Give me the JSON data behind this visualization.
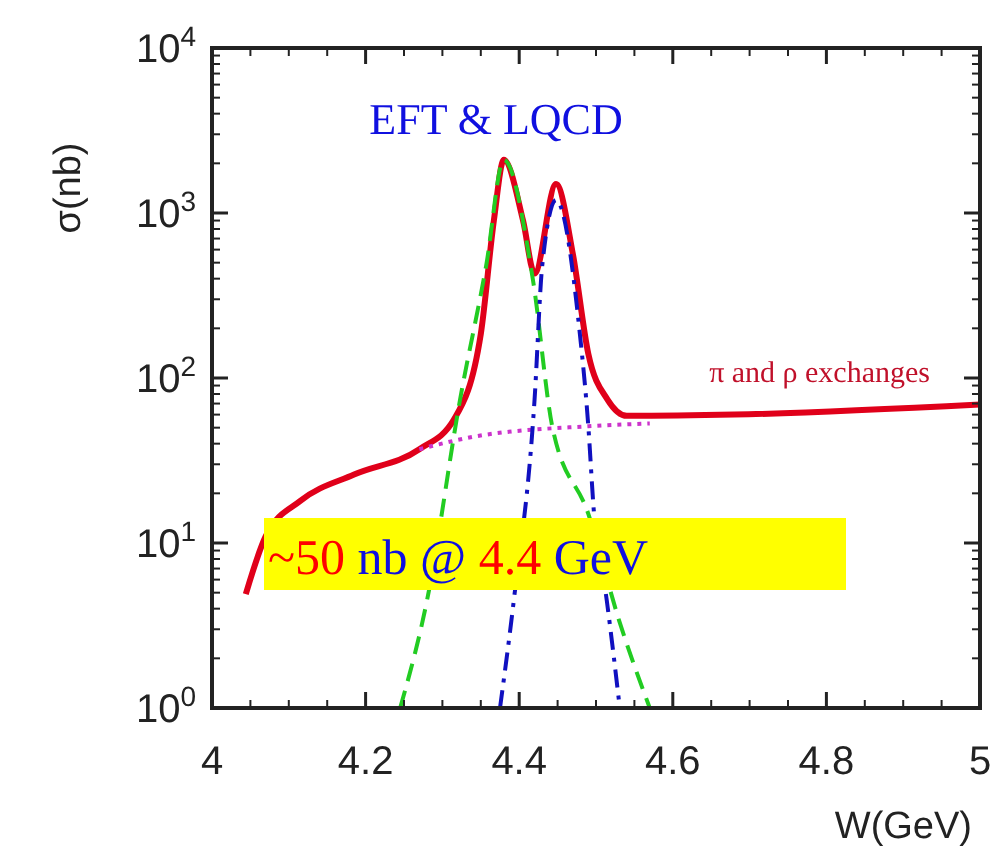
{
  "chart_data": {
    "type": "line",
    "xlabel": "W(GeV)",
    "ylabel": "σ(nb)",
    "log": "y",
    "grid": false,
    "xlim": [
      4,
      5
    ],
    "xticks": [
      4,
      4.2,
      4.4,
      4.6,
      4.8,
      5
    ],
    "ylim": [
      1,
      10000
    ],
    "yticks": [
      {
        "value": 1,
        "label": "10$^{0}$"
      },
      {
        "value": 10,
        "label": "10$^{1}$"
      },
      {
        "value": 100,
        "label": "10$^{2}$"
      },
      {
        "value": 1000,
        "label": "10$^{3}$"
      },
      {
        "value": 10000,
        "label": "10$^{4}$"
      }
    ],
    "series": [
      {
        "color": "#e0001a",
        "line_style": "solid",
        "x": [
          4.044,
          4.07,
          4.115,
          4.185,
          4.27,
          4.315,
          4.35,
          4.367,
          4.38,
          4.405,
          4.42,
          4.448,
          4.47,
          4.49,
          4.515,
          4.54,
          4.68,
          5
        ],
        "values": [
          4.9,
          11,
          18,
          26,
          37,
          56,
          185,
          900,
          2100,
          900,
          430,
          1500,
          560,
          140,
          74,
          59,
          60,
          69
        ]
      },
      {
        "color": "#cc33cc",
        "line_style": "dotted",
        "x": [
          4.27,
          4.34,
          4.49,
          4.57
        ],
        "values": [
          37,
          44,
          51,
          53
        ]
      },
      {
        "color": "#22cc22",
        "line_style": "dashed",
        "x": [
          4.245,
          4.28,
          4.323,
          4.357,
          4.38,
          4.418,
          4.443,
          4.49,
          4.53,
          4.57
        ],
        "values": [
          1,
          4.5,
          74,
          480,
          2100,
          390,
          51,
          15,
          3.4,
          1
        ]
      },
      {
        "color": "#1010c0",
        "line_style": "dashdot",
        "x": [
          4.375,
          4.393,
          4.42,
          4.43,
          4.448,
          4.479,
          4.49,
          4.497,
          4.514,
          4.531
        ],
        "values": [
          1,
          4.5,
          74,
          480,
          1200,
          185,
          51,
          16,
          4.5,
          1
        ]
      }
    ],
    "annotations": [
      "EFT & LQCD",
      "π and ρ exchanges",
      "~50 nb @ 4.4 GeV"
    ]
  }
}
